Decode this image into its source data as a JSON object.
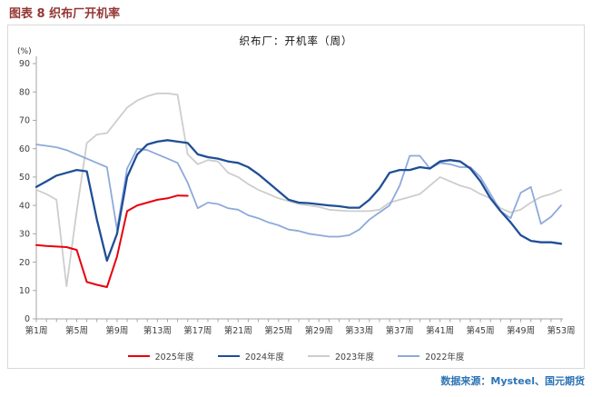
{
  "page": {
    "title": "图表 8  织布厂开机率",
    "source": "数据来源：Mysteel、国元期货"
  },
  "chart_data": {
    "type": "line",
    "title": "织布厂：开机率（周）",
    "unit_label": "(%)",
    "xlabel": "",
    "ylabel": "",
    "ylim": [
      0,
      90
    ],
    "y_ticks": [
      0,
      10,
      20,
      30,
      40,
      50,
      60,
      70,
      80,
      90
    ],
    "x_weeks": 53,
    "x_tick_weeks": [
      1,
      5,
      9,
      13,
      17,
      21,
      25,
      29,
      33,
      37,
      41,
      45,
      49,
      53
    ],
    "x_tick_labels": [
      "第1周",
      "第5周",
      "第9周",
      "第13周",
      "第17周",
      "第21周",
      "第25周",
      "第29周",
      "第33周",
      "第37周",
      "第41周",
      "第45周",
      "第49周",
      "第53周"
    ],
    "grid": false,
    "legend_position": "bottom",
    "colors": {
      "accent_title": "#943634",
      "source_text": "#2e74b5",
      "axis": "#a6a6a6",
      "tick_text": "#404040",
      "panel_border": "#d9d9d9"
    },
    "series": [
      {
        "name": "2025年度",
        "color": "#e8000d",
        "width": 2.0,
        "values": [
          26,
          25.7,
          25.5,
          25.3,
          24.3,
          13,
          12,
          11.2,
          22,
          38,
          40,
          41,
          42,
          42.5,
          43.5,
          43.4
        ]
      },
      {
        "name": "2024年度",
        "color": "#1f4e97",
        "width": 2.3,
        "values": [
          46.5,
          48.5,
          50.5,
          51.5,
          52.5,
          52,
          35,
          20.5,
          30,
          50,
          58,
          61.5,
          62.5,
          63,
          62.5,
          62,
          58,
          57,
          56.5,
          55.5,
          55,
          53.5,
          51,
          48,
          45,
          42,
          41,
          40.8,
          40.4,
          40,
          39.7,
          39.2,
          39.2,
          42,
          46,
          51.5,
          52.5,
          52.5,
          53.5,
          53,
          55.5,
          56,
          55.5,
          53,
          48.5,
          42.5,
          38,
          34,
          29.5,
          27.5,
          27,
          27,
          26.5
        ]
      },
      {
        "name": "2023年度",
        "color": "#cdcdcd",
        "width": 1.8,
        "values": [
          45.5,
          44,
          42,
          11.5,
          38,
          62,
          65,
          65.5,
          70,
          74.5,
          77,
          78.5,
          79.5,
          79.5,
          79,
          58,
          54.5,
          56,
          55.5,
          51.5,
          50,
          47.5,
          45.5,
          44,
          42.5,
          41.5,
          40.5,
          40,
          39.5,
          38.5,
          38.2,
          38,
          38,
          38,
          38.5,
          41,
          42,
          43,
          44,
          47,
          50,
          48.5,
          47,
          46,
          44,
          42.5,
          39,
          37.5,
          38.5,
          41,
          43,
          44,
          45.5
        ]
      },
      {
        "name": "2022年度",
        "color": "#8ea9db",
        "width": 1.8,
        "values": [
          61.5,
          61,
          60.5,
          59.5,
          58,
          56.5,
          55,
          53.5,
          31.5,
          53,
          60,
          59.5,
          58,
          56.5,
          55,
          48,
          39,
          41,
          40.5,
          39,
          38.5,
          36.5,
          35.5,
          34,
          33,
          31.5,
          31,
          30,
          29.5,
          29,
          29,
          29.5,
          31.5,
          35,
          37.5,
          40,
          47,
          57.5,
          57.5,
          53,
          55,
          54.5,
          53.5,
          53.5,
          50,
          44,
          38,
          35.5,
          44.5,
          46.5,
          33.5,
          36,
          40
        ]
      }
    ]
  }
}
